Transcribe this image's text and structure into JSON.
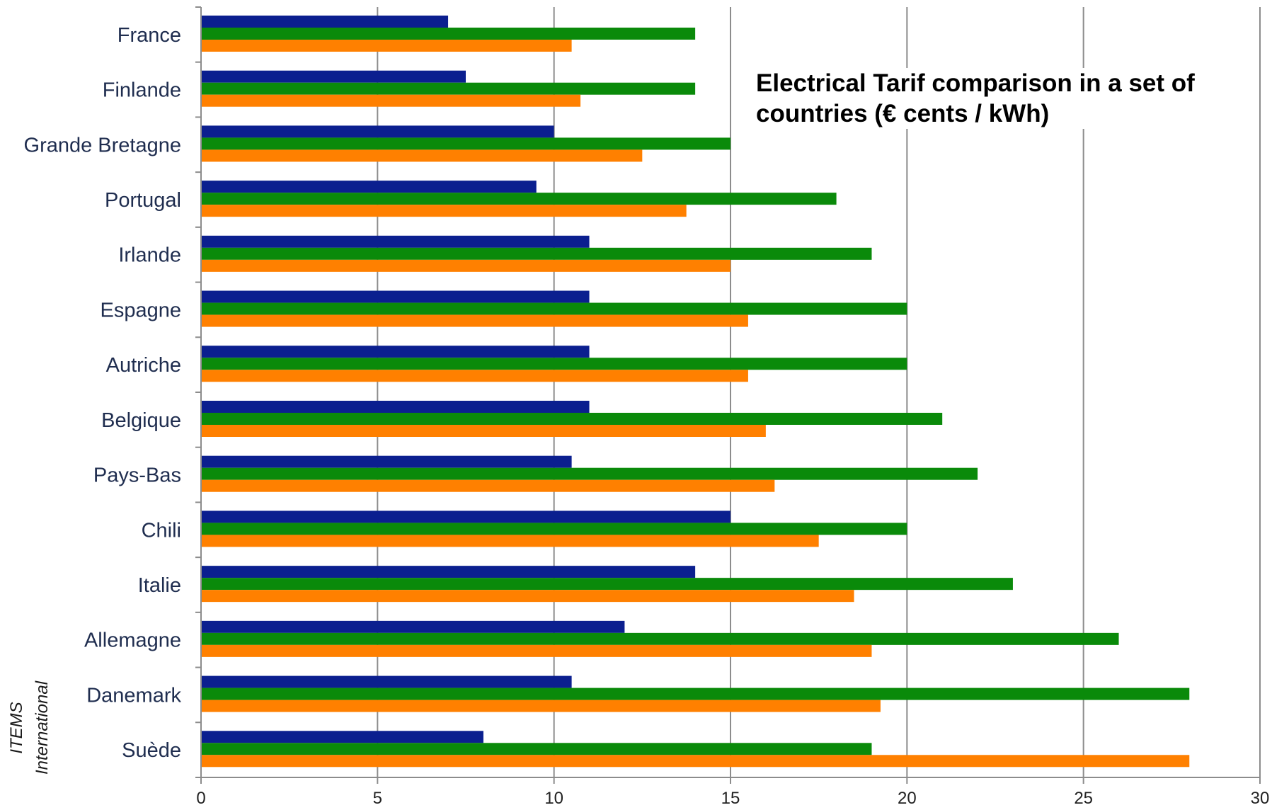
{
  "chart_data": {
    "type": "bar",
    "orientation": "horizontal",
    "title": "Electrical Tarif comparison in a set of countries (€ cents / kWh)",
    "categories": [
      "France",
      "Finlande",
      "Grande Bretagne",
      "Portugal",
      "Irlande",
      "Espagne",
      "Autriche",
      "Belgique",
      "Pays-Bas",
      "Chili",
      "Italie",
      "Allemagne",
      "Danemark",
      "Suède"
    ],
    "series": [
      {
        "color": "#0b1f8f",
        "values": [
          7,
          7.5,
          10,
          9.5,
          11,
          11,
          11,
          11,
          10.5,
          15,
          14,
          12,
          10.5,
          8
        ]
      },
      {
        "color": "#0a8a0a",
        "values": [
          14,
          14,
          15,
          18,
          19,
          20,
          20,
          21,
          22,
          20,
          23,
          26,
          28,
          19
        ]
      },
      {
        "color": "#ff8000",
        "values": [
          10.5,
          10.75,
          12.5,
          13.75,
          15,
          15.5,
          15.5,
          16,
          16.25,
          17.5,
          18.5,
          19,
          19.25,
          28
        ]
      }
    ],
    "xlim": [
      0,
      30
    ],
    "xticks": [
      "0",
      "5",
      "10",
      "15",
      "20",
      "25",
      "30"
    ],
    "grid": true,
    "legend": "none",
    "side_note": "ITEMS International"
  }
}
